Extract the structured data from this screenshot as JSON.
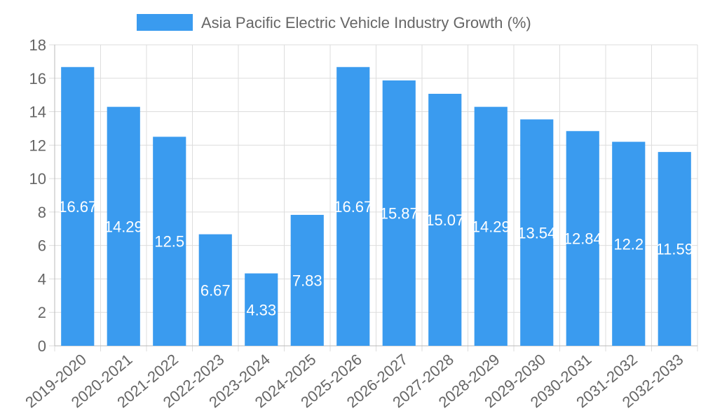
{
  "chart_data": {
    "type": "bar",
    "title": "",
    "legend": {
      "position": "top-center",
      "entries": [
        {
          "label": "Asia Pacific Electric Vehicle Industry Growth (%)",
          "color": "#3a9bef"
        }
      ]
    },
    "categories": [
      "2019-2020",
      "2020-2021",
      "2021-2022",
      "2022-2023",
      "2023-2024",
      "2024-2025",
      "2025-2026",
      "2026-2027",
      "2027-2028",
      "2028-2029",
      "2029-2030",
      "2030-2031",
      "2031-2032",
      "2032-2033"
    ],
    "series": [
      {
        "name": "Asia Pacific Electric Vehicle Industry Growth (%)",
        "color": "#3a9bef",
        "values": [
          16.67,
          14.29,
          12.5,
          6.67,
          4.33,
          7.83,
          16.67,
          15.87,
          15.07,
          14.29,
          13.54,
          12.84,
          12.2,
          11.59
        ]
      }
    ],
    "data_labels": [
      "16.67",
      "14.29",
      "12.5",
      "6.67",
      "4.33",
      "7.83",
      "16.67",
      "15.87",
      "15.07",
      "14.29",
      "13.54",
      "12.84",
      "12.2",
      "11.59"
    ],
    "y_ticks": [
      "0",
      "2",
      "4",
      "6",
      "8",
      "10",
      "12",
      "14",
      "16",
      "18"
    ],
    "ylim": [
      0,
      18
    ],
    "ytick_step": 2,
    "grid": true,
    "xlabel": "",
    "ylabel": ""
  }
}
